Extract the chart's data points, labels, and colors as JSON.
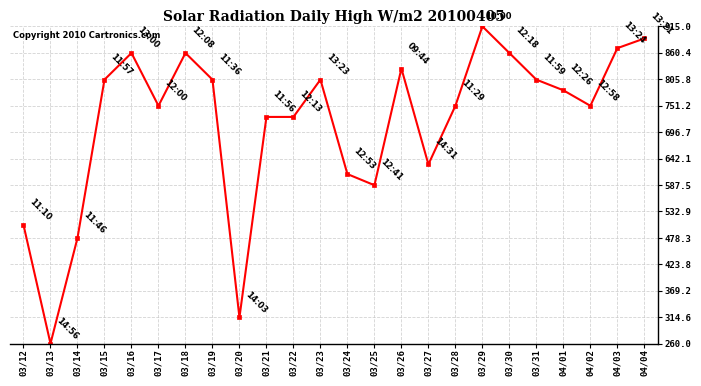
{
  "title": "Solar Radiation Daily High W/m2 20100405",
  "copyright": "Copyright 2010 Cartronics.com",
  "background_color": "#ffffff",
  "plot_bg_color": "#ffffff",
  "grid_color": "#c8c8c8",
  "line_color": "#ff0000",
  "marker_color": "#ff0000",
  "marker_size": 3,
  "line_width": 1.5,
  "ylim": [
    260.0,
    915.0
  ],
  "yticks": [
    260.0,
    314.6,
    369.2,
    423.8,
    478.3,
    532.9,
    587.5,
    642.1,
    696.7,
    751.2,
    805.8,
    860.4,
    915.0
  ],
  "dates": [
    "03/12",
    "03/13",
    "03/14",
    "03/15",
    "03/16",
    "03/17",
    "03/18",
    "03/19",
    "03/20",
    "03/21",
    "03/22",
    "03/23",
    "03/24",
    "03/25",
    "03/26",
    "03/27",
    "03/28",
    "03/29",
    "03/30",
    "03/31",
    "04/01",
    "04/02",
    "04/03",
    "04/04"
  ],
  "values": [
    505,
    260,
    478,
    805,
    860,
    751,
    860,
    805,
    314,
    728,
    728,
    805,
    610,
    587,
    828,
    630,
    751,
    915,
    860,
    805,
    783,
    751,
    870,
    890
  ],
  "time_labels": [
    "11:10",
    "14:56",
    "11:46",
    "11:57",
    "13:00",
    "12:00",
    "12:08",
    "11:36",
    "14:03",
    "11:56",
    "12:13",
    "13:23",
    "12:53",
    "12:41",
    "09:44",
    "14:31",
    "11:29",
    "10:00",
    "12:18",
    "11:59",
    "12:26",
    "12:58",
    "13:24",
    "13:21"
  ],
  "label_horizontal": [
    false,
    false,
    false,
    false,
    false,
    false,
    false,
    false,
    false,
    false,
    false,
    false,
    false,
    false,
    false,
    false,
    false,
    true,
    false,
    false,
    false,
    false,
    false,
    false
  ]
}
